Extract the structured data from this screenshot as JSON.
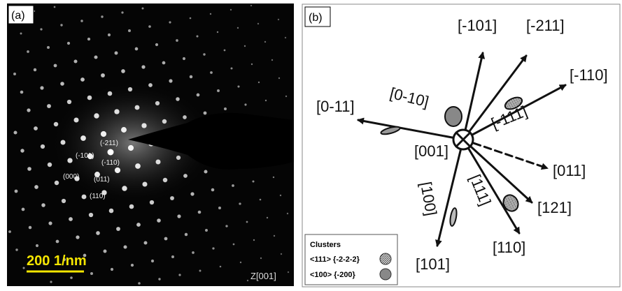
{
  "panel_a": {
    "label": "(a)",
    "spots": [
      "(-211)",
      "(-101)",
      "(-110)",
      "(000)",
      "(011)",
      "(110)"
    ],
    "scale_bar": "200 1/nm",
    "zone_axis": "Z[001]"
  },
  "panel_b": {
    "label": "(b)",
    "center": "[001]",
    "directions": [
      "[-101]",
      "[-211]",
      "[-110]",
      "[0-11]",
      "[0-10]",
      "[-111]",
      "[011]",
      "[121]",
      "[100]",
      "[111]",
      "[110]",
      "[101]"
    ],
    "legend": {
      "title": "Clusters",
      "items": [
        "<111> {-2-2-2}",
        "<100> {-200}"
      ]
    }
  }
}
